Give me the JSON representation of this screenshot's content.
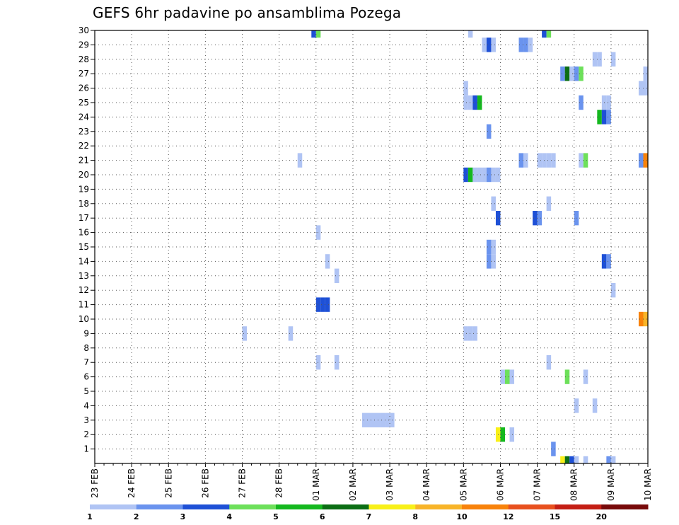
{
  "chart_data": {
    "type": "heatmap",
    "title": "GEFS 6hr padavine po ansamblima Pozega",
    "xlabel": "",
    "ylabel": "",
    "x_tick_labels": [
      "23 FEB",
      "24 FEB",
      "25 FEB",
      "26 FEB",
      "27 FEB",
      "28 FEB",
      "01 MAR",
      "02 MAR",
      "03 MAR",
      "04 MAR",
      "05 MAR",
      "06 MAR",
      "07 MAR",
      "08 MAR",
      "09 MAR",
      "10 MAR"
    ],
    "x_unit": "6-hour steps after 23 FEB 00Z",
    "x_range": [
      0,
      60
    ],
    "y_tick_labels": [
      1,
      2,
      3,
      4,
      5,
      6,
      7,
      8,
      9,
      10,
      11,
      12,
      13,
      14,
      15,
      16,
      17,
      18,
      19,
      20,
      21,
      22,
      23,
      24,
      25,
      26,
      27,
      28,
      29,
      30
    ],
    "y_range": [
      0,
      30
    ],
    "grid": true,
    "colorbar": {
      "labels": [
        "1",
        "2",
        "3",
        "4",
        "5",
        "6",
        "7",
        "8",
        "10",
        "12",
        "15",
        "20"
      ],
      "colors": [
        "#b0c4f4",
        "#6a93ee",
        "#1e50d6",
        "#6de05a",
        "#14b81e",
        "#0b6e14",
        "#f8f018",
        "#f8b428",
        "#f8820a",
        "#e8501e",
        "#c41e14",
        "#780a0a"
      ]
    },
    "cells": [
      [
        23.75,
        30,
        3
      ],
      [
        24.25,
        30,
        4
      ],
      [
        40.75,
        30,
        1
      ],
      [
        48.75,
        30,
        3
      ],
      [
        49.25,
        30,
        4
      ],
      [
        42.25,
        29,
        1
      ],
      [
        42.75,
        29,
        3
      ],
      [
        43.25,
        29,
        1
      ],
      [
        46.25,
        29,
        2
      ],
      [
        46.75,
        29,
        2
      ],
      [
        47.25,
        29,
        1
      ],
      [
        54.25,
        28,
        1
      ],
      [
        54.75,
        28,
        1
      ],
      [
        56.25,
        28,
        1
      ],
      [
        50.75,
        27,
        2
      ],
      [
        51.25,
        27,
        6
      ],
      [
        51.75,
        27,
        1
      ],
      [
        52.25,
        27,
        2
      ],
      [
        52.75,
        27,
        4
      ],
      [
        59.75,
        27,
        1
      ],
      [
        40.25,
        26,
        1
      ],
      [
        59.25,
        26,
        1
      ],
      [
        59.75,
        26,
        1
      ],
      [
        40.25,
        25,
        1
      ],
      [
        40.75,
        25,
        1
      ],
      [
        41.25,
        25,
        3
      ],
      [
        41.75,
        25,
        5
      ],
      [
        52.75,
        25,
        2
      ],
      [
        55.25,
        25,
        1
      ],
      [
        55.75,
        25,
        1
      ],
      [
        54.75,
        24,
        5
      ],
      [
        55.25,
        24,
        3
      ],
      [
        55.75,
        24,
        2
      ],
      [
        42.75,
        23,
        2
      ],
      [
        22.25,
        21,
        1
      ],
      [
        46.25,
        21,
        2
      ],
      [
        46.75,
        21,
        1
      ],
      [
        48.25,
        21,
        1
      ],
      [
        48.75,
        21,
        1
      ],
      [
        49.25,
        21,
        1
      ],
      [
        49.75,
        21,
        1
      ],
      [
        52.75,
        21,
        1
      ],
      [
        53.25,
        21,
        4
      ],
      [
        59.25,
        21,
        2
      ],
      [
        59.75,
        21,
        9
      ],
      [
        40.25,
        20,
        3
      ],
      [
        40.75,
        20,
        5
      ],
      [
        41.25,
        20,
        1
      ],
      [
        41.75,
        20,
        1
      ],
      [
        42.25,
        20,
        1
      ],
      [
        42.75,
        20,
        2
      ],
      [
        43.25,
        20,
        1
      ],
      [
        43.75,
        20,
        1
      ],
      [
        43.25,
        18,
        1
      ],
      [
        49.25,
        18,
        1
      ],
      [
        43.75,
        17,
        3
      ],
      [
        47.75,
        17,
        3
      ],
      [
        48.25,
        17,
        2
      ],
      [
        52.25,
        17,
        2
      ],
      [
        24.25,
        16,
        1
      ],
      [
        42.75,
        15,
        2
      ],
      [
        43.25,
        15,
        1
      ],
      [
        25.25,
        14,
        1
      ],
      [
        42.75,
        14,
        2
      ],
      [
        43.25,
        14,
        1
      ],
      [
        55.25,
        14,
        3
      ],
      [
        55.75,
        14,
        2
      ],
      [
        26.25,
        13,
        1
      ],
      [
        56.25,
        12,
        1
      ],
      [
        24.25,
        11,
        3
      ],
      [
        24.75,
        11,
        3
      ],
      [
        25.25,
        11,
        3
      ],
      [
        59.25,
        10,
        9
      ],
      [
        59.75,
        10,
        8
      ],
      [
        16.25,
        9,
        1
      ],
      [
        21.25,
        9,
        1
      ],
      [
        40.25,
        9,
        1
      ],
      [
        40.75,
        9,
        1
      ],
      [
        41.25,
        9,
        1
      ],
      [
        24.25,
        7,
        1
      ],
      [
        26.25,
        7,
        1
      ],
      [
        49.25,
        7,
        1
      ],
      [
        44.25,
        6,
        1
      ],
      [
        44.75,
        6,
        4
      ],
      [
        45.25,
        6,
        1
      ],
      [
        51.25,
        6,
        4
      ],
      [
        53.25,
        6,
        1
      ],
      [
        52.25,
        4,
        1
      ],
      [
        54.25,
        4,
        1
      ],
      [
        29.25,
        3,
        1
      ],
      [
        29.75,
        3,
        1
      ],
      [
        30.25,
        3,
        1
      ],
      [
        30.75,
        3,
        1
      ],
      [
        31.25,
        3,
        1
      ],
      [
        31.75,
        3,
        1
      ],
      [
        32.25,
        3,
        1
      ],
      [
        43.75,
        2,
        7
      ],
      [
        44.25,
        2,
        5
      ],
      [
        45.25,
        2,
        1
      ],
      [
        49.75,
        1,
        2
      ],
      [
        50.75,
        0,
        7
      ],
      [
        51.25,
        0,
        6
      ],
      [
        51.75,
        0,
        3
      ],
      [
        52.25,
        0,
        1
      ],
      [
        53.25,
        0,
        1
      ],
      [
        55.75,
        0,
        2
      ],
      [
        56.25,
        0,
        1
      ]
    ]
  }
}
